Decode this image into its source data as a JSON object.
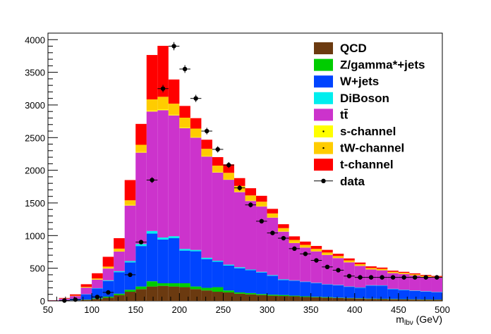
{
  "chart_data": {
    "type": "bar",
    "stacked": true,
    "xlabel_main": "m",
    "xlabel_sub": "lbν",
    "xlabel_unit": " (GeV)",
    "ylabel": "",
    "xlim": [
      50,
      500
    ],
    "ylim": [
      0,
      4100
    ],
    "bin_edges": [
      50,
      62.5,
      75,
      87.5,
      100,
      112.5,
      125,
      137.5,
      150,
      162.5,
      175,
      187.5,
      200,
      212.5,
      225,
      237.5,
      250,
      262.5,
      275,
      287.5,
      300,
      312.5,
      325,
      337.5,
      350,
      362.5,
      375,
      387.5,
      400,
      412.5,
      425,
      437.5,
      450,
      462.5,
      475,
      487.5,
      500
    ],
    "x_ticks": [
      50,
      100,
      150,
      200,
      250,
      300,
      350,
      400,
      450,
      500
    ],
    "y_ticks": [
      0,
      500,
      1000,
      1500,
      2000,
      2500,
      3000,
      3500,
      4000
    ],
    "legend_position": "top-right",
    "series": [
      {
        "name": "QCD",
        "color": "#6b3a10",
        "values": [
          0,
          2,
          5,
          15,
          30,
          50,
          90,
          140,
          180,
          220,
          230,
          220,
          210,
          180,
          160,
          140,
          130,
          110,
          100,
          90,
          80,
          75,
          70,
          60,
          55,
          50,
          45,
          40,
          35,
          30,
          28,
          25,
          22,
          20,
          18,
          16
        ]
      },
      {
        "name": "Z/gamma*+jets",
        "color": "#00cc00",
        "values": [
          0,
          1,
          2,
          5,
          10,
          15,
          20,
          30,
          40,
          80,
          40,
          50,
          60,
          40,
          40,
          70,
          30,
          20,
          20,
          15,
          15,
          15,
          10,
          10,
          8,
          8,
          5,
          5,
          5,
          5,
          5,
          5,
          4,
          4,
          4,
          4
        ]
      },
      {
        "name": "W+jets",
        "color": "#0044ff",
        "values": [
          3,
          10,
          25,
          80,
          150,
          240,
          330,
          420,
          620,
          730,
          670,
          690,
          500,
          540,
          440,
          390,
          380,
          370,
          350,
          330,
          290,
          230,
          230,
          220,
          210,
          190,
          190,
          170,
          160,
          200,
          200,
          150,
          140,
          130,
          120,
          110
        ]
      },
      {
        "name": "DiBoson",
        "color": "#00eeee",
        "values": [
          0,
          1,
          2,
          3,
          5,
          10,
          15,
          20,
          30,
          40,
          30,
          30,
          25,
          20,
          20,
          15,
          15,
          15,
          10,
          10,
          10,
          10,
          5,
          5,
          5,
          5,
          5,
          5,
          5,
          5,
          5,
          5,
          5,
          5,
          5,
          5
        ]
      },
      {
        "name": "tt̄",
        "color": "#cc33cc",
        "values": [
          5,
          20,
          40,
          100,
          130,
          180,
          300,
          850,
          1400,
          1830,
          1950,
          1850,
          1850,
          1720,
          1550,
          1350,
          1300,
          1150,
          1050,
          1000,
          880,
          730,
          570,
          520,
          480,
          450,
          410,
          370,
          330,
          240,
          230,
          240,
          240,
          230,
          220,
          220
        ]
      },
      {
        "name": "s-channel",
        "color": "#ffff00",
        "values": [
          0,
          1,
          1,
          2,
          3,
          5,
          5,
          10,
          10,
          15,
          15,
          10,
          10,
          8,
          8,
          6,
          6,
          5,
          5,
          4,
          4,
          4,
          3,
          3,
          3,
          3,
          2,
          2,
          2,
          2,
          2,
          2,
          2,
          2,
          2,
          2
        ]
      },
      {
        "name": "tW-channel",
        "color": "#ffcc00",
        "values": [
          0,
          2,
          5,
          10,
          15,
          25,
          40,
          70,
          110,
          170,
          190,
          170,
          150,
          130,
          110,
          100,
          100,
          90,
          80,
          70,
          60,
          50,
          45,
          40,
          35,
          35,
          30,
          28,
          25,
          22,
          20,
          18,
          16,
          15,
          14,
          13
        ]
      },
      {
        "name": "t-channel",
        "color": "#ff0000",
        "values": [
          2,
          8,
          20,
          40,
          80,
          150,
          160,
          310,
          320,
          680,
          780,
          370,
          180,
          160,
          140,
          130,
          130,
          120,
          110,
          90,
          70,
          60,
          55,
          50,
          45,
          40,
          35,
          30,
          25,
          25,
          20,
          18,
          16,
          15,
          14,
          12
        ]
      }
    ],
    "data": {
      "name": "data",
      "color": "#000000",
      "x": [
        68.75,
        81.25,
        106.25,
        118.75,
        143.75,
        156.25,
        168.75,
        181.25,
        193.75,
        206.25,
        218.75,
        231.25,
        243.75,
        256.25,
        268.75,
        281.25,
        293.75,
        306.25,
        318.75,
        331.25,
        343.75,
        356.25,
        368.75,
        381.25,
        393.75,
        406.25,
        418.75,
        431.25,
        443.75,
        456.25,
        468.75,
        481.25,
        493.75
      ],
      "y": [
        5,
        20,
        60,
        130,
        400,
        900,
        1850,
        3250,
        3900,
        3550,
        3100,
        2600,
        2320,
        2080,
        1730,
        1470,
        1220,
        1040,
        960,
        800,
        720,
        620,
        520,
        470,
        380,
        360,
        360,
        360,
        360,
        360,
        360,
        360,
        360
      ]
    }
  }
}
